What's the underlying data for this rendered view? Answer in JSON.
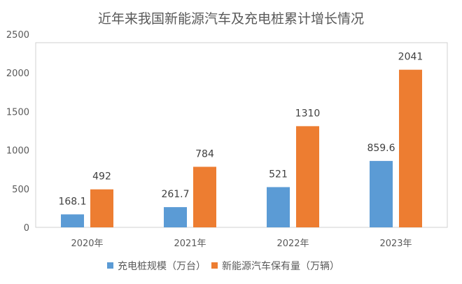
{
  "chart_data": {
    "type": "bar",
    "title": "近年来我国新能源汽车及充电桩累计增长情况",
    "categories": [
      "2020年",
      "2021年",
      "2022年",
      "2023年"
    ],
    "series": [
      {
        "name": "充电桩规模（万台）",
        "values": [
          168.1,
          261.7,
          521,
          859.6
        ],
        "labels": [
          "168.1",
          "261.7",
          "521",
          "859.6"
        ],
        "color": "#5B9BD5"
      },
      {
        "name": "新能源汽车保有量（万辆）",
        "values": [
          492,
          784,
          1310,
          2041
        ],
        "labels": [
          "492",
          "784",
          "1310",
          "2041"
        ],
        "color": "#ED7D31"
      }
    ],
    "ylim": [
      0,
      2500
    ],
    "yticks": [
      "0",
      "500",
      "1000",
      "1500",
      "2000",
      "2500"
    ],
    "grid": false,
    "legend": "bottom"
  }
}
